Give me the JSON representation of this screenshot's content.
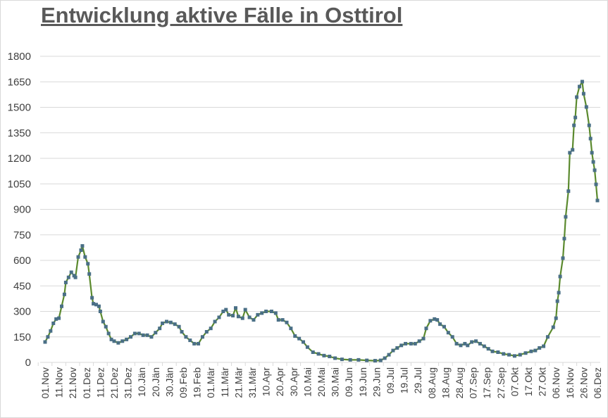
{
  "chart_data": {
    "type": "line",
    "title": "Entwicklung aktive Fälle in Osttirol",
    "xlabel": "",
    "ylabel": "",
    "ylim": [
      0,
      1800
    ],
    "yticks": [
      0,
      150,
      300,
      450,
      600,
      750,
      900,
      1050,
      1200,
      1350,
      1500,
      1650,
      1800
    ],
    "xlim": [
      "2020-11-01",
      "2021-12-06"
    ],
    "xtick_labels": [
      "01.Nov",
      "11.Nov",
      "21.Nov",
      "01.Dez",
      "11.Dez",
      "21.Dez",
      "31.Dez",
      "10.Jän",
      "20.Jän",
      "30.Jän",
      "09.Feb",
      "19.Feb",
      "01.Mär",
      "11.Mär",
      "21.Mär",
      "31.Mär",
      "10.Apr",
      "20.Apr",
      "30.Apr",
      "10.Mai",
      "20.Mai",
      "30.Mai",
      "09.Jun",
      "19.Jun",
      "29.Jun",
      "09.Jul",
      "19.Jul",
      "29.Jul",
      "08.Aug",
      "18.Aug",
      "28.Aug",
      "07.Sep",
      "17.Sep",
      "27.Sep",
      "07.Okt",
      "17.Okt",
      "27.Okt",
      "06.Nov",
      "16.Nov",
      "26.Nov",
      "06.Dez"
    ],
    "grid": true,
    "line_color": "#5b8a2e",
    "marker_color": "#4a6f86",
    "series": [
      {
        "points": [
          [
            "2020-11-01",
            120
          ],
          [
            "2020-11-03",
            150
          ],
          [
            "2020-11-05",
            185
          ],
          [
            "2020-11-07",
            230
          ],
          [
            "2020-11-09",
            255
          ],
          [
            "2020-11-11",
            260
          ],
          [
            "2020-11-13",
            330
          ],
          [
            "2020-11-15",
            400
          ],
          [
            "2020-11-16",
            470
          ],
          [
            "2020-11-18",
            500
          ],
          [
            "2020-11-20",
            530
          ],
          [
            "2020-11-22",
            510
          ],
          [
            "2020-11-23",
            500
          ],
          [
            "2020-11-25",
            620
          ],
          [
            "2020-11-27",
            660
          ],
          [
            "2020-11-28",
            685
          ],
          [
            "2020-11-30",
            620
          ],
          [
            "2020-12-02",
            580
          ],
          [
            "2020-12-03",
            520
          ],
          [
            "2020-12-05",
            380
          ],
          [
            "2020-12-06",
            345
          ],
          [
            "2020-12-08",
            340
          ],
          [
            "2020-12-10",
            330
          ],
          [
            "2020-12-11",
            300
          ],
          [
            "2020-12-13",
            240
          ],
          [
            "2020-12-15",
            210
          ],
          [
            "2020-12-17",
            170
          ],
          [
            "2020-12-19",
            135
          ],
          [
            "2020-12-21",
            125
          ],
          [
            "2020-12-24",
            115
          ],
          [
            "2020-12-27",
            125
          ],
          [
            "2020-12-30",
            135
          ],
          [
            "2021-01-02",
            150
          ],
          [
            "2021-01-05",
            170
          ],
          [
            "2021-01-08",
            170
          ],
          [
            "2021-01-11",
            160
          ],
          [
            "2021-01-14",
            160
          ],
          [
            "2021-01-17",
            150
          ],
          [
            "2021-01-20",
            175
          ],
          [
            "2021-01-23",
            200
          ],
          [
            "2021-01-25",
            230
          ],
          [
            "2021-01-28",
            240
          ],
          [
            "2021-01-31",
            235
          ],
          [
            "2021-02-03",
            225
          ],
          [
            "2021-02-06",
            210
          ],
          [
            "2021-02-08",
            180
          ],
          [
            "2021-02-11",
            150
          ],
          [
            "2021-02-14",
            130
          ],
          [
            "2021-02-17",
            110
          ],
          [
            "2021-02-20",
            110
          ],
          [
            "2021-02-23",
            150
          ],
          [
            "2021-02-26",
            180
          ],
          [
            "2021-03-01",
            200
          ],
          [
            "2021-03-04",
            240
          ],
          [
            "2021-03-07",
            265
          ],
          [
            "2021-03-10",
            300
          ],
          [
            "2021-03-12",
            310
          ],
          [
            "2021-03-14",
            280
          ],
          [
            "2021-03-17",
            275
          ],
          [
            "2021-03-19",
            320
          ],
          [
            "2021-03-21",
            270
          ],
          [
            "2021-03-24",
            260
          ],
          [
            "2021-03-26",
            310
          ],
          [
            "2021-03-29",
            265
          ],
          [
            "2021-04-01",
            250
          ],
          [
            "2021-04-04",
            280
          ],
          [
            "2021-04-07",
            290
          ],
          [
            "2021-04-10",
            300
          ],
          [
            "2021-04-14",
            300
          ],
          [
            "2021-04-17",
            290
          ],
          [
            "2021-04-19",
            250
          ],
          [
            "2021-04-22",
            250
          ],
          [
            "2021-04-25",
            235
          ],
          [
            "2021-04-28",
            200
          ],
          [
            "2021-05-01",
            155
          ],
          [
            "2021-05-04",
            140
          ],
          [
            "2021-05-07",
            120
          ],
          [
            "2021-05-10",
            90
          ],
          [
            "2021-05-14",
            60
          ],
          [
            "2021-05-18",
            50
          ],
          [
            "2021-05-22",
            40
          ],
          [
            "2021-05-26",
            35
          ],
          [
            "2021-05-30",
            25
          ],
          [
            "2021-06-04",
            18
          ],
          [
            "2021-06-10",
            15
          ],
          [
            "2021-06-16",
            15
          ],
          [
            "2021-06-22",
            12
          ],
          [
            "2021-06-28",
            10
          ],
          [
            "2021-07-02",
            12
          ],
          [
            "2021-07-05",
            25
          ],
          [
            "2021-07-08",
            45
          ],
          [
            "2021-07-11",
            70
          ],
          [
            "2021-07-14",
            85
          ],
          [
            "2021-07-17",
            100
          ],
          [
            "2021-07-20",
            110
          ],
          [
            "2021-07-24",
            110
          ],
          [
            "2021-07-27",
            110
          ],
          [
            "2021-07-30",
            125
          ],
          [
            "2021-08-02",
            140
          ],
          [
            "2021-08-04",
            200
          ],
          [
            "2021-08-07",
            245
          ],
          [
            "2021-08-10",
            255
          ],
          [
            "2021-08-12",
            250
          ],
          [
            "2021-08-14",
            225
          ],
          [
            "2021-08-17",
            210
          ],
          [
            "2021-08-20",
            175
          ],
          [
            "2021-08-23",
            150
          ],
          [
            "2021-08-26",
            110
          ],
          [
            "2021-08-29",
            100
          ],
          [
            "2021-09-01",
            110
          ],
          [
            "2021-09-03",
            100
          ],
          [
            "2021-09-06",
            120
          ],
          [
            "2021-09-09",
            125
          ],
          [
            "2021-09-12",
            110
          ],
          [
            "2021-09-15",
            95
          ],
          [
            "2021-09-18",
            80
          ],
          [
            "2021-09-21",
            65
          ],
          [
            "2021-09-25",
            60
          ],
          [
            "2021-09-29",
            50
          ],
          [
            "2021-10-03",
            45
          ],
          [
            "2021-10-07",
            38
          ],
          [
            "2021-10-11",
            45
          ],
          [
            "2021-10-15",
            55
          ],
          [
            "2021-10-19",
            65
          ],
          [
            "2021-10-22",
            70
          ],
          [
            "2021-10-25",
            85
          ],
          [
            "2021-10-28",
            95
          ],
          [
            "2021-10-31",
            150
          ],
          [
            "2021-11-04",
            207
          ],
          [
            "2021-11-06",
            260
          ],
          [
            "2021-11-07",
            360
          ],
          [
            "2021-11-08",
            410
          ],
          [
            "2021-11-09",
            505
          ],
          [
            "2021-11-11",
            613
          ],
          [
            "2021-11-12",
            728
          ],
          [
            "2021-11-13",
            856
          ],
          [
            "2021-11-15",
            1007
          ],
          [
            "2021-11-16",
            1233
          ],
          [
            "2021-11-18",
            1250
          ],
          [
            "2021-11-19",
            1394
          ],
          [
            "2021-11-20",
            1440
          ],
          [
            "2021-11-21",
            1560
          ],
          [
            "2021-11-23",
            1622
          ],
          [
            "2021-11-25",
            1651
          ],
          [
            "2021-11-26",
            1580
          ],
          [
            "2021-11-28",
            1502
          ],
          [
            "2021-11-30",
            1394
          ],
          [
            "2021-12-01",
            1316
          ],
          [
            "2021-12-02",
            1233
          ],
          [
            "2021-12-03",
            1179
          ],
          [
            "2021-12-04",
            1130
          ],
          [
            "2021-12-05",
            1047
          ],
          [
            "2021-12-06",
            952
          ]
        ]
      }
    ]
  }
}
